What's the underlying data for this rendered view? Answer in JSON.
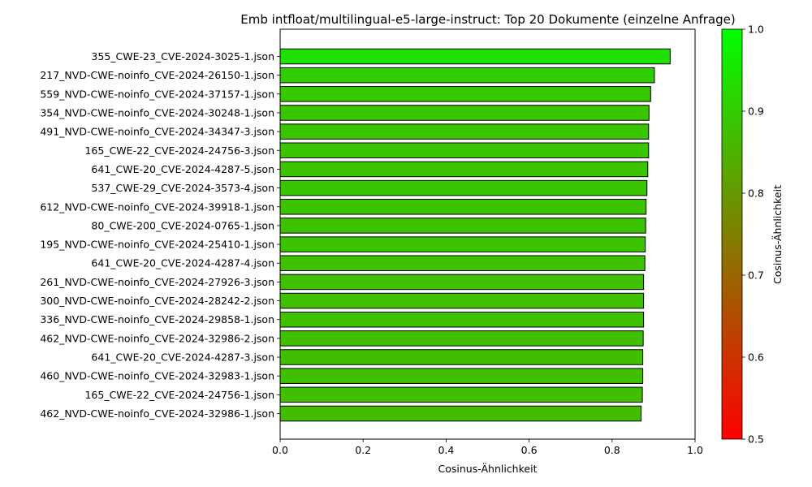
{
  "chart_data": {
    "type": "bar",
    "orientation": "horizontal",
    "title": "Emb intfloat/multilingual-e5-large-instruct: Top 20 Dokumente (einzelne Anfrage)",
    "xlabel": "Cosinus-Ähnlichkeit",
    "ylabel": "",
    "xlim": [
      0.0,
      1.0
    ],
    "x_ticks": [
      "0.0",
      "0.2",
      "0.4",
      "0.6",
      "0.8",
      "1.0"
    ],
    "categories": [
      "355_CWE-23_CVE-2024-3025-1.json",
      "217_NVD-CWE-noinfo_CVE-2024-26150-1.json",
      "559_NVD-CWE-noinfo_CVE-2024-37157-1.json",
      "354_NVD-CWE-noinfo_CVE-2024-30248-1.json",
      "491_NVD-CWE-noinfo_CVE-2024-34347-3.json",
      "165_CWE-22_CVE-2024-24756-3.json",
      "641_CWE-20_CVE-2024-4287-5.json",
      "537_CWE-29_CVE-2024-3573-4.json",
      "612_NVD-CWE-noinfo_CVE-2024-39918-1.json",
      "80_CWE-200_CVE-2024-0765-1.json",
      "195_NVD-CWE-noinfo_CVE-2024-25410-1.json",
      "641_CWE-20_CVE-2024-4287-4.json",
      "261_NVD-CWE-noinfo_CVE-2024-27926-3.json",
      "300_NVD-CWE-noinfo_CVE-2024-28242-2.json",
      "336_NVD-CWE-noinfo_CVE-2024-29858-1.json",
      "462_NVD-CWE-noinfo_CVE-2024-32986-2.json",
      "641_CWE-20_CVE-2024-4287-3.json",
      "460_NVD-CWE-noinfo_CVE-2024-32983-1.json",
      "165_CWE-22_CVE-2024-24756-1.json",
      "462_NVD-CWE-noinfo_CVE-2024-32986-1.json"
    ],
    "values": [
      0.94,
      0.902,
      0.893,
      0.889,
      0.888,
      0.888,
      0.886,
      0.884,
      0.882,
      0.881,
      0.88,
      0.879,
      0.876,
      0.876,
      0.876,
      0.875,
      0.874,
      0.874,
      0.873,
      0.87
    ],
    "colormap": {
      "label": "Cosinus-Ähnlichkeit",
      "range": [
        0.5,
        1.0
      ],
      "ticks": [
        "0.5",
        "0.6",
        "0.7",
        "0.8",
        "0.9",
        "1.0"
      ],
      "low_color": "#ff0000",
      "high_color": "#00ff00"
    },
    "bar_edge_color": "#000000",
    "grid": false,
    "legend": "none"
  }
}
